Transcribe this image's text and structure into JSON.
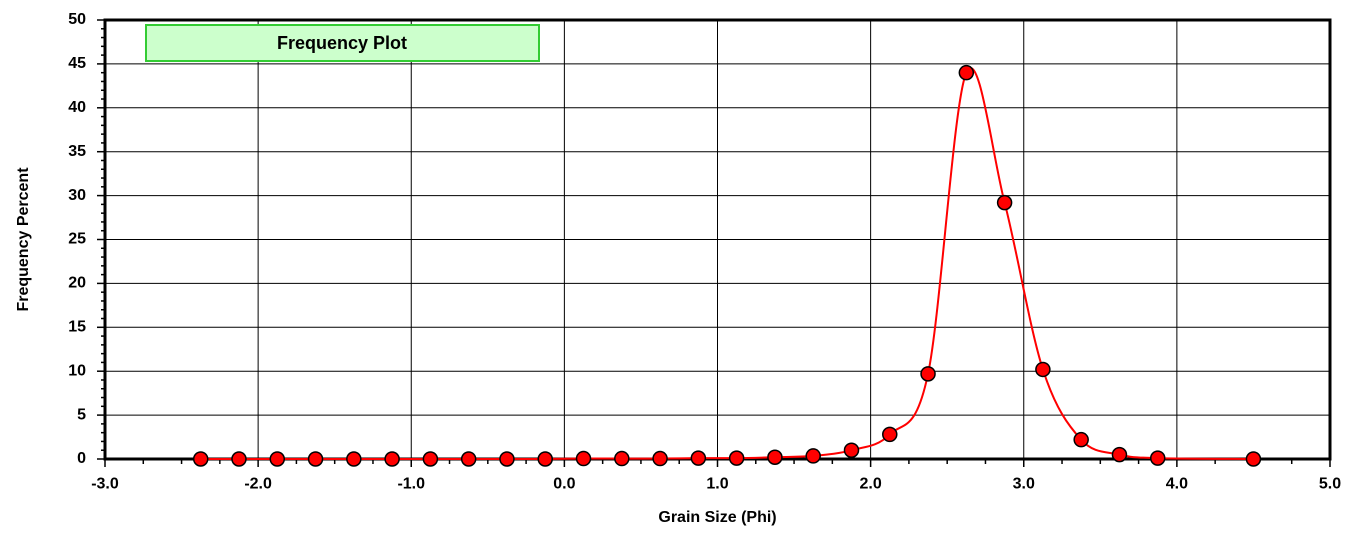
{
  "chart_data": {
    "type": "scatter",
    "title": "Frequency Plot",
    "xlabel": "Grain Size (Phi)",
    "ylabel": "Frequency Percent",
    "xlim": [
      -3.0,
      5.0
    ],
    "ylim": [
      0,
      50
    ],
    "x_ticks": [
      "-3.0",
      "-2.0",
      "-1.0",
      "0.0",
      "1.0",
      "2.0",
      "3.0",
      "4.0",
      "5.0"
    ],
    "y_ticks": [
      "0",
      "5",
      "10",
      "15",
      "20",
      "25",
      "30",
      "35",
      "40",
      "45",
      "50"
    ],
    "grid": true,
    "legend": "none",
    "colors": {
      "marker_fill": "#ff0000",
      "marker_edge": "#000000",
      "curve": "#ff0000",
      "title_box_fill": "#ccffcc",
      "title_box_border": "#33cc33"
    },
    "series": [
      {
        "x": [
          -2.375,
          -2.125,
          -1.875,
          -1.625,
          -1.375,
          -1.125,
          -0.875,
          -0.625,
          -0.375,
          -0.125,
          0.125,
          0.375,
          0.625,
          0.875,
          1.125,
          1.375,
          1.625,
          1.875,
          2.125,
          2.375,
          2.625,
          2.875,
          3.125,
          3.375,
          3.625,
          3.875,
          4.5
        ],
        "y": [
          0.0,
          0.0,
          0.0,
          0.0,
          0.0,
          0.0,
          0.0,
          0.0,
          0.0,
          0.0,
          0.05,
          0.05,
          0.05,
          0.1,
          0.1,
          0.2,
          0.35,
          1.0,
          2.8,
          9.7,
          44.0,
          29.2,
          10.2,
          2.2,
          0.5,
          0.1,
          0.0
        ]
      }
    ]
  }
}
